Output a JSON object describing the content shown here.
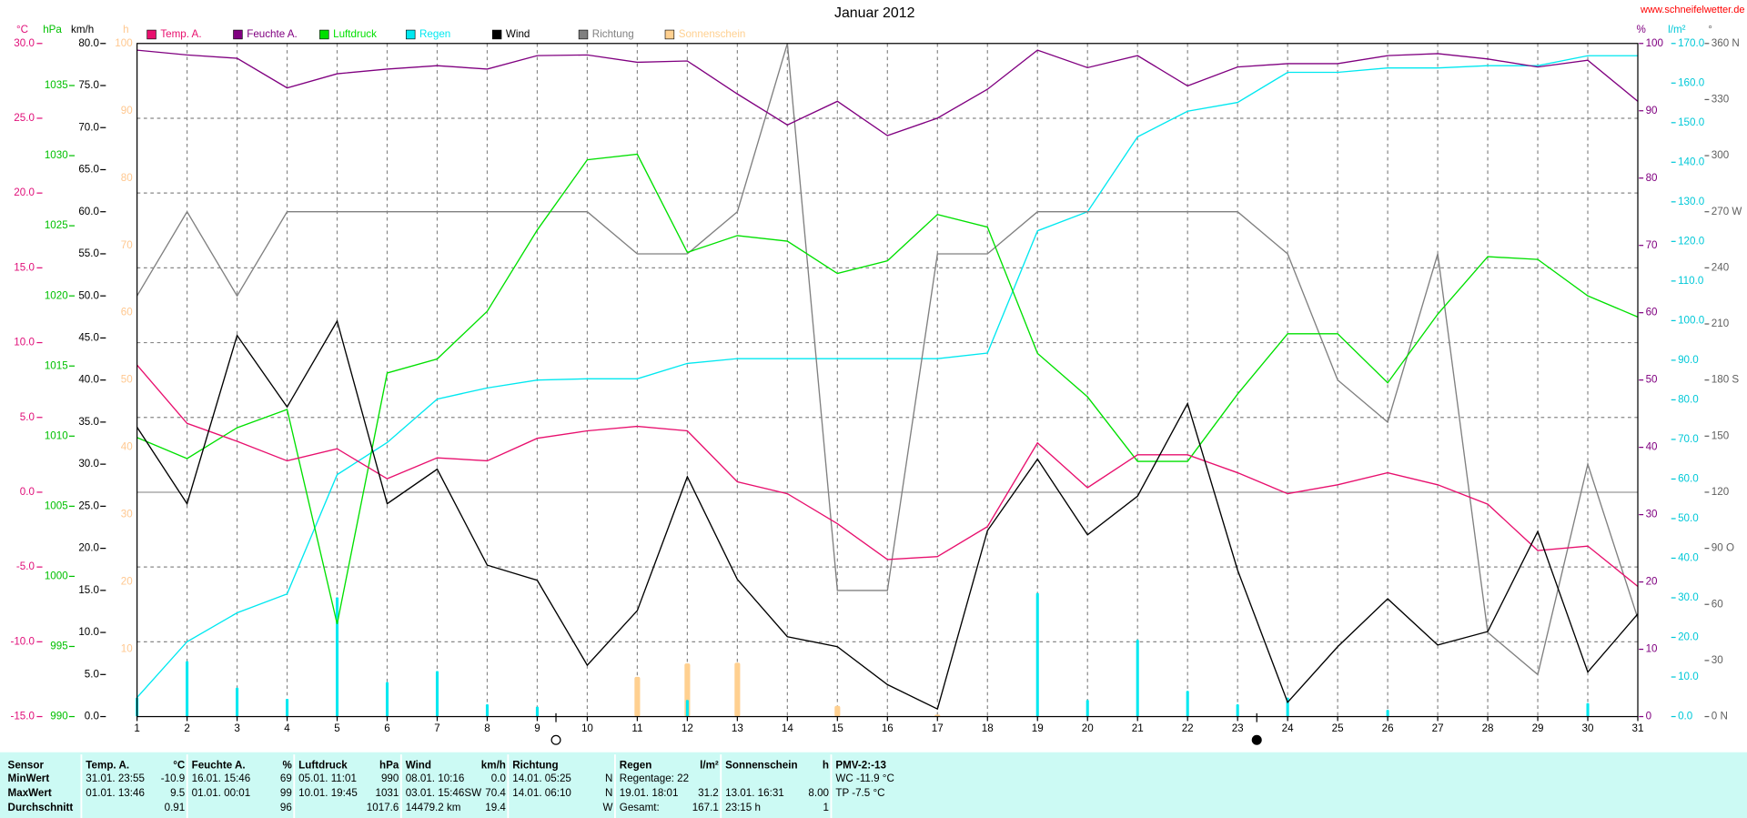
{
  "chart_data": {
    "type": "line",
    "title": "Januar 2012",
    "source": "www.schneifelwetter.de",
    "x": [
      1,
      2,
      3,
      4,
      5,
      6,
      7,
      8,
      9,
      10,
      11,
      12,
      13,
      14,
      15,
      16,
      17,
      18,
      19,
      20,
      21,
      22,
      23,
      24,
      25,
      26,
      27,
      28,
      29,
      30,
      31
    ],
    "xlim": [
      1,
      31
    ],
    "xticks": [
      1,
      2,
      3,
      4,
      5,
      6,
      7,
      8,
      9,
      10,
      11,
      12,
      13,
      14,
      15,
      16,
      17,
      18,
      19,
      20,
      21,
      22,
      23,
      24,
      25,
      26,
      27,
      28,
      29,
      30,
      31
    ],
    "grid": true,
    "axes": [
      {
        "unit": "°C",
        "color": "#e0107a",
        "ylim": [
          -15,
          30
        ],
        "yticks": [
          {
            "value": 30,
            "label": "30.0"
          },
          {
            "value": 25,
            "label": "25.0"
          },
          {
            "value": 20,
            "label": "20.0"
          },
          {
            "value": 15,
            "label": "15.0"
          },
          {
            "value": 10,
            "label": "10.0"
          },
          {
            "value": 5,
            "label": "5.0"
          },
          {
            "value": 0,
            "label": "0.0"
          },
          {
            "value": -5,
            "label": "-5.0"
          },
          {
            "value": -10,
            "label": "-10.0"
          },
          {
            "value": -15,
            "label": "-15.0"
          }
        ]
      },
      {
        "unit": "hPa",
        "color": "#00c000",
        "ylim": [
          990,
          1038
        ],
        "yticks": [
          990,
          995,
          1000,
          1005,
          1010,
          1015,
          1020,
          1025,
          1030,
          1035
        ]
      },
      {
        "unit": "km/h",
        "color": "#000000",
        "ylim": [
          0,
          80
        ],
        "yticks": [
          {
            "value": 0,
            "label": "0.0"
          },
          {
            "value": 5,
            "label": "5.0"
          },
          {
            "value": 10,
            "label": "10.0"
          },
          {
            "value": 15,
            "label": "15.0"
          },
          {
            "value": 20,
            "label": "20.0"
          },
          {
            "value": 25,
            "label": "25.0"
          },
          {
            "value": 30,
            "label": "30.0"
          },
          {
            "value": 35,
            "label": "35.0"
          },
          {
            "value": 40,
            "label": "40.0"
          },
          {
            "value": 45,
            "label": "45.0"
          },
          {
            "value": 50,
            "label": "50.0"
          },
          {
            "value": 55,
            "label": "55.0"
          },
          {
            "value": 60,
            "label": "60.0"
          },
          {
            "value": 65,
            "label": "65.0"
          },
          {
            "value": 70,
            "label": "70.0"
          },
          {
            "value": 75,
            "label": "75.0"
          },
          {
            "value": 80,
            "label": "80.0"
          }
        ]
      },
      {
        "unit": "h",
        "color": "#ffc890",
        "ylim": [
          0,
          100
        ],
        "yticks": [
          10,
          20,
          30,
          40,
          50,
          60,
          70,
          80,
          90,
          100
        ]
      },
      {
        "unit": "%",
        "color": "#800080",
        "ylim": [
          0,
          100
        ],
        "yticks": [
          0,
          10,
          20,
          30,
          40,
          50,
          60,
          70,
          80,
          90,
          100
        ]
      },
      {
        "unit": "l/m²",
        "color": "#00c8d8",
        "ylim": [
          0,
          170
        ],
        "yticks": [
          {
            "value": 0,
            "label": "0.0"
          },
          {
            "value": 10,
            "label": "10.0"
          },
          {
            "value": 20,
            "label": "20.0"
          },
          {
            "value": 30,
            "label": "30.0"
          },
          {
            "value": 40,
            "label": "40.0"
          },
          {
            "value": 50,
            "label": "50.0"
          },
          {
            "value": 60,
            "label": "60.0"
          },
          {
            "value": 70,
            "label": "70.0"
          },
          {
            "value": 80,
            "label": "80.0"
          },
          {
            "value": 90,
            "label": "90.0"
          },
          {
            "value": 100,
            "label": "100.0"
          },
          {
            "value": 110,
            "label": "110.0"
          },
          {
            "value": 120,
            "label": "120.0"
          },
          {
            "value": 130,
            "label": "130.0"
          },
          {
            "value": 140,
            "label": "140.0"
          },
          {
            "value": 150,
            "label": "150.0"
          },
          {
            "value": 160,
            "label": "160.0"
          },
          {
            "value": 170,
            "label": "170.0"
          }
        ]
      },
      {
        "unit": "°",
        "color": "#606060",
        "ylim": [
          0,
          360
        ],
        "yticks": [
          {
            "value": 0,
            "label": "0 N"
          },
          30,
          60,
          {
            "value": 90,
            "label": "90 O"
          },
          120,
          150,
          {
            "value": 180,
            "label": "180 S"
          },
          210,
          240,
          {
            "value": 270,
            "label": "270 W"
          },
          300,
          330,
          {
            "value": 360,
            "label": "360 N"
          }
        ]
      }
    ],
    "series": [
      {
        "name": "Temp. A.",
        "color": "#e8106e",
        "axis": 0,
        "values": [
          8.5,
          4.6,
          3.4,
          2.1,
          2.9,
          0.9,
          2.3,
          2.1,
          3.6,
          4.1,
          4.4,
          4.1,
          0.7,
          -0.1,
          -2.1,
          -4.5,
          -4.3,
          -2.3,
          3.3,
          0.3,
          2.5,
          2.5,
          1.3,
          -0.1,
          0.5,
          1.3,
          0.5,
          -0.8,
          -3.9,
          -3.6,
          -6.3
        ]
      },
      {
        "name": "Feuchte A.",
        "color": "#800080",
        "axis": 4,
        "values": [
          99,
          98.3,
          97.8,
          93.4,
          95.5,
          96.2,
          96.7,
          96.2,
          98.2,
          98.3,
          97.2,
          97.4,
          92.5,
          87.9,
          91.4,
          86.3,
          88.9,
          93.2,
          99,
          96.4,
          98.2,
          93.7,
          96.5,
          97,
          97,
          98.2,
          98.5,
          97.7,
          96.5,
          97.5,
          91.4
        ]
      },
      {
        "name": "Luftdruck",
        "color": "#00e000",
        "axis": 1,
        "values": [
          1009.9,
          1008.4,
          1010.6,
          1011.9,
          996.6,
          1014.5,
          1015.5,
          1018.9,
          1024.7,
          1029.7,
          1030.1,
          1023.1,
          1024.3,
          1023.9,
          1021.6,
          1022.5,
          1025.8,
          1024.9,
          1015.9,
          1012.8,
          1008.2,
          1008.2,
          1013,
          1017.3,
          1017.3,
          1013.8,
          1018.7,
          1022.8,
          1022.6,
          1020,
          1018.5
        ]
      },
      {
        "name": "Regen",
        "color": "#00e8f0",
        "axis": 5,
        "values": [
          4.8,
          18.9,
          26.2,
          31,
          61.1,
          69.2,
          80.2,
          83,
          85,
          85.3,
          85.3,
          89.2,
          90.4,
          90.4,
          90.4,
          90.4,
          90.4,
          91.8,
          122.7,
          127.5,
          146.4,
          152.9,
          155.1,
          162.7,
          162.7,
          163.8,
          163.8,
          164.4,
          164.4,
          166.9,
          166.9
        ],
        "bar_values": [
          4.8,
          14,
          7.3,
          4.5,
          30.1,
          8.7,
          11.5,
          3.1,
          2.5,
          0,
          0,
          4.2,
          0,
          0,
          0,
          0,
          0,
          0,
          31.2,
          4.2,
          19.4,
          6.5,
          3.1,
          4.8,
          0,
          1.7,
          0,
          0,
          0,
          3.4,
          0
        ]
      },
      {
        "name": "Wind",
        "color": "#000000",
        "axis": 2,
        "values": [
          34.4,
          25.3,
          45.3,
          36.8,
          47,
          25.3,
          29.4,
          18,
          16.2,
          6.1,
          12.6,
          28.5,
          16.3,
          9.5,
          8.3,
          3.8,
          0.9,
          22.1,
          30.6,
          21.6,
          26.2,
          37.2,
          17.4,
          1.7,
          8.3,
          14,
          8.5,
          10.1,
          22,
          5.3,
          12.2
        ]
      },
      {
        "name": "Richtung",
        "color": "#808080",
        "axis": 6,
        "values": [
          225,
          270,
          225,
          270,
          270,
          270,
          270,
          270,
          270,
          270,
          247.5,
          247.5,
          270,
          360,
          67.5,
          67.5,
          247.5,
          247.5,
          270,
          270,
          270,
          270,
          270,
          247.5,
          180,
          157.5,
          247.5,
          45,
          22.5,
          135,
          52.5
        ]
      },
      {
        "name": "Sonnenschein",
        "color": "#ffd090",
        "axis": 3,
        "type": "bar",
        "values": [
          0,
          0,
          0,
          0,
          0,
          0,
          0,
          0,
          0,
          0,
          5.9,
          7.9,
          8,
          0,
          1.6,
          0,
          0.3,
          0,
          0,
          0,
          0,
          0,
          0,
          0,
          0,
          0,
          0,
          0,
          0,
          0,
          0
        ]
      }
    ]
  },
  "table": {
    "header_label": "Sensor",
    "row_labels": [
      "MinWert",
      "MaxWert",
      "Durchschnitt"
    ],
    "columns": [
      {
        "header": "Temp. A.",
        "unit": "°C",
        "rows": [
          {
            "left": "31.01. 23:55",
            "right": "-10.9"
          },
          {
            "left": "01.01. 13:46",
            "right": "9.5"
          },
          {
            "right": "0.91"
          }
        ]
      },
      {
        "header": "Feuchte A.",
        "unit": "%",
        "rows": [
          {
            "left": "16.01. 15:46",
            "right": "69"
          },
          {
            "left": "01.01. 00:01",
            "right": "99"
          },
          {
            "right": "96"
          }
        ]
      },
      {
        "header": "Luftdruck",
        "unit": "hPa",
        "rows": [
          {
            "left": "05.01. 11:01",
            "right": "990"
          },
          {
            "left": "10.01. 19:45",
            "right": "1031"
          },
          {
            "right": "1017.6"
          }
        ]
      },
      {
        "header": "Wind",
        "unit": "km/h",
        "rows": [
          {
            "left": "08.01. 10:16",
            "right": "0.0"
          },
          {
            "left": "03.01. 15:46SW",
            "right": "70.4"
          },
          {
            "left": "14479.2 km",
            "right": "19.4"
          }
        ]
      },
      {
        "header": "Richtung",
        "rows": [
          {
            "left": "14.01. 05:25",
            "right": "N"
          },
          {
            "left": "14.01. 06:10",
            "right": "N"
          },
          {
            "right": "W"
          }
        ]
      },
      {
        "header": "Regen",
        "unit": "l/m²",
        "rows": [
          {
            "left": "Regentage: 22"
          },
          {
            "left": "19.01. 18:01",
            "right": "31.2"
          },
          {
            "left": "Gesamt:",
            "right": "167.1"
          }
        ]
      },
      {
        "header": "Sonnenschein",
        "unit": "h",
        "rows": [
          {},
          {
            "left": "13.01. 16:31",
            "right": "8.00"
          },
          {
            "left": "23:15 h",
            "right": "1"
          }
        ]
      },
      {
        "header": "PMV-2:-13",
        "rows": [
          {
            "left": "WC -11.9 °C"
          },
          {
            "left": "TP -7.5 °C"
          }
        ]
      }
    ]
  }
}
